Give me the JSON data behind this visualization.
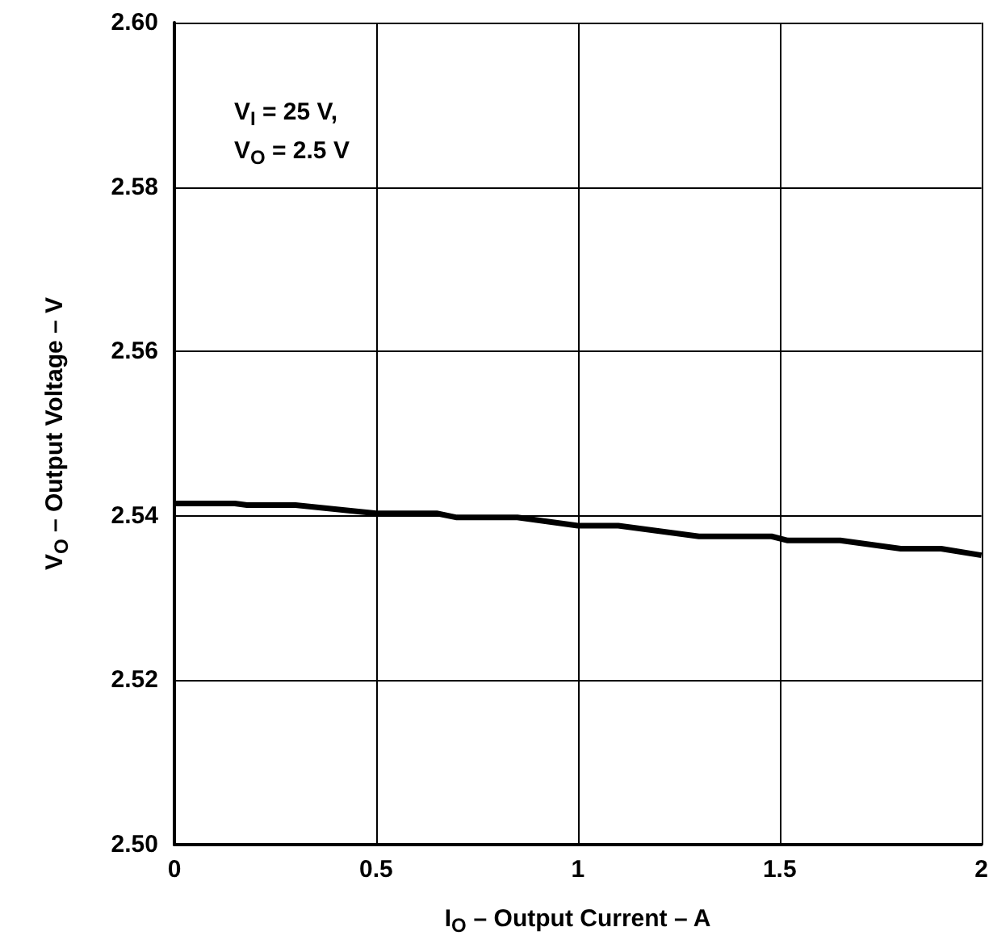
{
  "chart_data": {
    "type": "line",
    "xlabel": "I$_{O}$ – Output Current – A",
    "ylabel": "V$_{O}$ – Output Voltage – V",
    "annotations": [
      "V$_{I}$ = 25 V,",
      "V$_{O}$ = 2.5 V"
    ],
    "x": [
      0,
      0.15,
      0.18,
      0.3,
      0.5,
      0.65,
      0.7,
      0.85,
      1.0,
      1.1,
      1.3,
      1.48,
      1.52,
      1.65,
      1.8,
      1.9,
      2.0
    ],
    "series": [
      {
        "color": "#000000",
        "values": [
          2.5415,
          2.5415,
          2.5413,
          2.5413,
          2.5403,
          2.5403,
          2.5398,
          2.5398,
          2.5388,
          2.5388,
          2.5375,
          2.5375,
          2.537,
          2.537,
          2.536,
          2.536,
          2.5352
        ]
      }
    ],
    "xlim": [
      0,
      2
    ],
    "xticks": [
      0,
      0.5,
      1,
      1.5,
      2
    ],
    "ylim": [
      2.5,
      2.6
    ],
    "yticks": [
      {
        "value": 2.5,
        "label": "2.50"
      },
      {
        "value": 2.52,
        "label": "2.52"
      },
      {
        "value": 2.54,
        "label": "2.54"
      },
      {
        "value": 2.56,
        "label": "2.56"
      },
      {
        "value": 2.58,
        "label": "2.58"
      },
      {
        "value": 2.6,
        "label": "2.60"
      }
    ],
    "grid": true,
    "marker": "none",
    "line_style": "solid"
  }
}
